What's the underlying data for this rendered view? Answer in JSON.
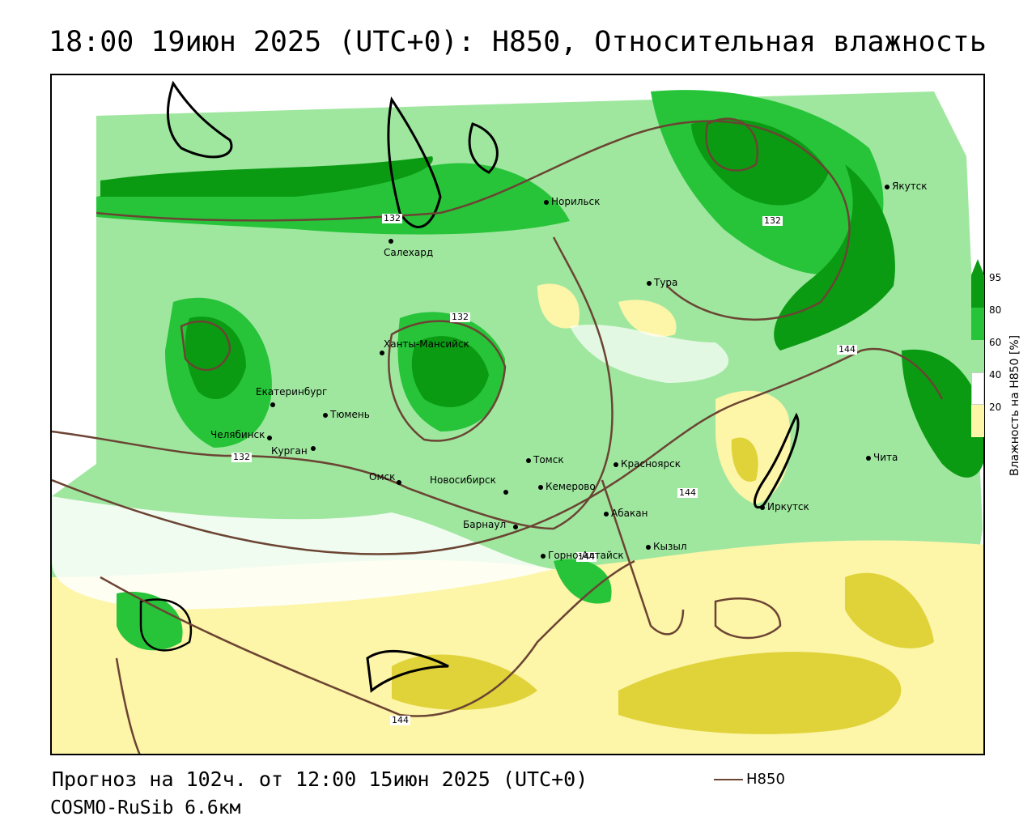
{
  "title": "18:00 19июн 2025 (UTC+0): H850, Относительная влажность",
  "footer": {
    "forecast": "Прогноз на 102ч. от 12:00 15июн 2025 (UTC+0)",
    "model": "COSMO-RuSib 6.6км",
    "isoline_legend": "H850"
  },
  "legend": {
    "title": "Влажность на H850 [%]",
    "ticks": [
      "95",
      "80",
      "60",
      "40",
      "20"
    ],
    "colors": {
      "very_wet": "#0a9b13",
      "wet": "#27c43a",
      "moist": "#9fe79f",
      "white": "#ffffff",
      "dry": "#fdf5a8",
      "very_dry": "#e0d33a"
    }
  },
  "isolines": {
    "labels": [
      "132",
      "132",
      "132",
      "132",
      "144",
      "144",
      "144",
      "144"
    ],
    "color": "#6b4433"
  },
  "cities": [
    {
      "name": "Якутск"
    },
    {
      "name": "Норильск"
    },
    {
      "name": "Салехард"
    },
    {
      "name": "Тура"
    },
    {
      "name": "Ханты-Мансийск"
    },
    {
      "name": "Екатеринбург"
    },
    {
      "name": "Тюмень"
    },
    {
      "name": "Челябинск"
    },
    {
      "name": "Курган"
    },
    {
      "name": "Омск"
    },
    {
      "name": "Новосибирск"
    },
    {
      "name": "Томск"
    },
    {
      "name": "Кемерово"
    },
    {
      "name": "Красноярск"
    },
    {
      "name": "Барнаул"
    },
    {
      "name": "Абакан"
    },
    {
      "name": "Горно-Алтайск"
    },
    {
      "name": "Кызыл"
    },
    {
      "name": "Иркутск"
    },
    {
      "name": "Чита"
    }
  ]
}
